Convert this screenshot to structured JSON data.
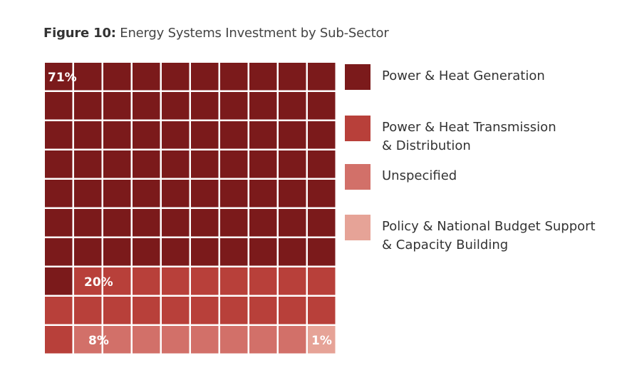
{
  "figure": {
    "label": "Figure 10:",
    "title": "Energy Systems Investment by Sub-Sector"
  },
  "chart_data": {
    "type": "waffle",
    "title": "Figure 10: Energy Systems Investment by Sub-Sector",
    "grid": {
      "rows": 10,
      "cols": 10
    },
    "series": [
      {
        "name": "Power & Heat Generation",
        "value": 71,
        "label": "71%",
        "color": "#7b1a1b"
      },
      {
        "name": "Power & Heat Transmission & Distribution",
        "value": 20,
        "label": "20%",
        "color": "#b8403a"
      },
      {
        "name": "Unspecified",
        "value": 8,
        "label": "8%",
        "color": "#d27069"
      },
      {
        "name": "Policy & National Budget Support & Capacity Building",
        "value": 1,
        "label": "1%",
        "color": "#e6a397"
      }
    ],
    "legend_position": "right"
  },
  "legend": {
    "items": [
      {
        "text": "Power & Heat Generation",
        "color": "#7b1a1b"
      },
      {
        "text": "Power & Heat Transmission & Distribution",
        "color": "#b8403a"
      },
      {
        "text": "Unspecified",
        "color": "#d27069"
      },
      {
        "text": "Policy & National Budget Support & Capacity Building",
        "color": "#e6a397"
      }
    ]
  }
}
